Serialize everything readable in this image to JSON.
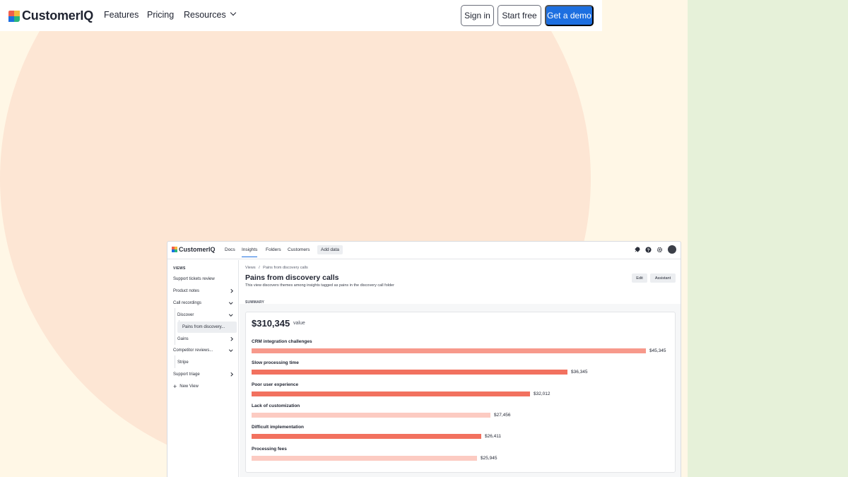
{
  "brand": {
    "name": "CustomerIQ",
    "colors": [
      "#f25f4c",
      "#f6b93b",
      "#1d6fe0",
      "#2cb67d"
    ]
  },
  "nav": {
    "links": [
      "Features",
      "Pricing",
      "Resources"
    ],
    "sign_in": "Sign in",
    "start_free": "Start free",
    "demo": "Get a demo"
  },
  "app": {
    "brand": "CustomerIQ",
    "tabs": [
      "Docs",
      "Insights",
      "Folders",
      "Customers"
    ],
    "active_tab": "Insights",
    "add_data": "Add data",
    "top_icons": [
      "rocket-icon",
      "help-icon",
      "settings-icon",
      "avatar"
    ],
    "sidebar": {
      "heading": "VIEWS",
      "items": [
        {
          "label": "Support tickets review"
        },
        {
          "label": "Product notes",
          "chevron": "right"
        },
        {
          "label": "Call recordings",
          "chevron": "down"
        },
        {
          "label": "Discover",
          "chevron": "down"
        },
        {
          "label": "Pains from discovery...",
          "selected": true
        },
        {
          "label": "Gains",
          "chevron": "right"
        },
        {
          "label": "Competitor reviews...",
          "chevron": "down"
        },
        {
          "label": "Stripe"
        },
        {
          "label": "Support triage",
          "chevron": "right"
        }
      ],
      "new_view": "New View"
    },
    "breadcrumb": [
      "Views",
      "Pains from discovery calls"
    ],
    "crumb_sep": "/",
    "title": "Pains from discovery calls",
    "subtitle": "This view discovers themes among insights tagged as pains in the discovery call folder",
    "edit": "Edit",
    "assistant": "Assistant",
    "summary_label": "SUMMARY",
    "total": "$310,345",
    "total_label": "value"
  },
  "chart_data": {
    "type": "bar",
    "orientation": "horizontal",
    "categories": [
      "CRM integration challenges",
      "Slow processing time",
      "Poor user experience",
      "Lack of customization",
      "Difficult implementation",
      "Processing fees"
    ],
    "values": [
      45345,
      36345,
      32012,
      27456,
      26411,
      25945
    ],
    "value_labels": [
      "$45,345",
      "$36,345",
      "$32,012",
      "$27,456",
      "$26,411",
      "$25,945"
    ],
    "colors": [
      "#f7998b",
      "#f2715f",
      "#f2715f",
      "#fccbc2",
      "#f2715f",
      "#fccbc2"
    ]
  }
}
